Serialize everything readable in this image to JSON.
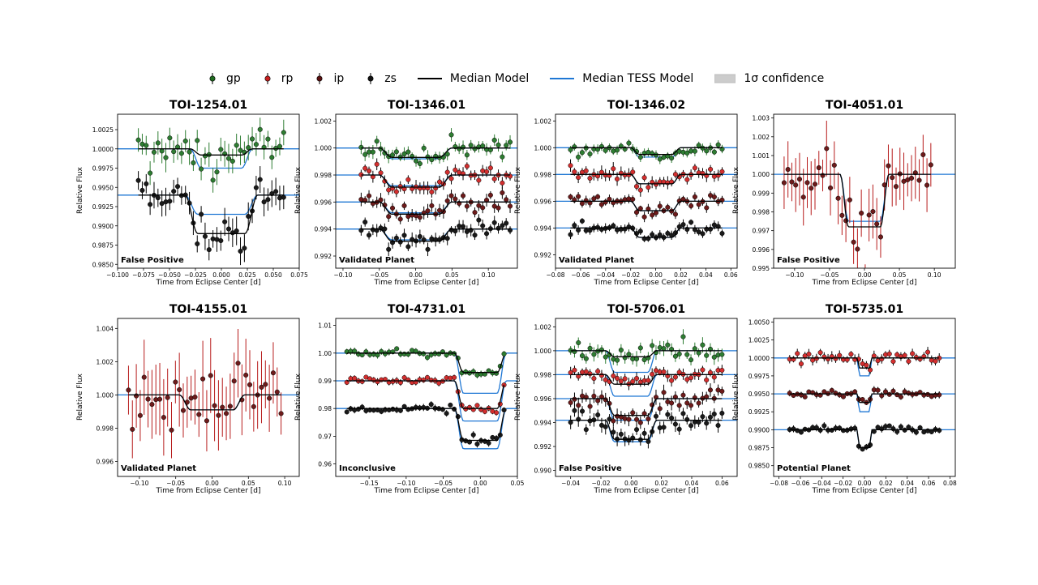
{
  "legend": {
    "items": [
      {
        "label": "gp",
        "type": "marker",
        "color": "#1f6b1f"
      },
      {
        "label": "rp",
        "type": "marker",
        "color": "#c81e1e"
      },
      {
        "label": "ip",
        "type": "marker",
        "color": "#5a1010"
      },
      {
        "label": "zs",
        "type": "marker",
        "color": "#111111"
      },
      {
        "label": "Median Model",
        "type": "line",
        "color": "#000000"
      },
      {
        "label": "Median TESS Model",
        "type": "line",
        "color": "#1f77d4"
      },
      {
        "label": "1σ confidence",
        "type": "patch",
        "color": "#cccccc"
      }
    ]
  },
  "colors": {
    "gp": "#2e7d32",
    "rp": "#d32f2f",
    "ip": "#6d1b1b",
    "zs": "#1a1a1a",
    "model": "#000000",
    "tess": "#1f77d4",
    "errbar_gp": "#2e7d32",
    "errbar_rp": "#b71c1c"
  },
  "chart_data": [
    {
      "type": "scatter",
      "title": "TOI-1254.01",
      "label": "False Positive",
      "xlabel": "Time from Eclipse Center [d]",
      "ylabel": "Relative Flux",
      "xlim": [
        -0.1,
        0.075
      ],
      "ylim": [
        0.9845,
        1.0045
      ],
      "xticks": [
        -0.1,
        -0.075,
        -0.05,
        -0.025,
        0.0,
        0.025,
        0.05,
        0.075
      ],
      "xticklabels": [
        "−0.100",
        "−0.075",
        "−0.050",
        "−0.025",
        "0.000",
        "0.025",
        "0.050",
        "0.075"
      ],
      "yticks": [
        0.985,
        0.9875,
        0.99,
        0.9925,
        0.995,
        0.9975,
        1.0,
        1.0025
      ],
      "yticklabels": [
        "0.9850",
        "0.9875",
        "0.9900",
        "0.9925",
        "0.9950",
        "0.9975",
        "1.0000",
        "1.0025"
      ],
      "data_xrange": [
        -0.08,
        0.06
      ],
      "series": [
        {
          "name": "gp",
          "baseline": 1.0,
          "depth": 0.0008,
          "half_width": 0.03,
          "tess_depth": 0.0025,
          "scatter": 0.0012,
          "err": 0.0015
        },
        {
          "name": "zs",
          "baseline": 0.994,
          "depth": 0.005,
          "half_width": 0.035,
          "tess_depth": 0.0025,
          "scatter": 0.0012,
          "err": 0.0015
        }
      ]
    },
    {
      "type": "scatter",
      "title": "TOI-1346.01",
      "label": "Validated Planet",
      "xlabel": "Time from Eclipse Center [d]",
      "ylabel": "Relative Flux",
      "xlim": [
        -0.11,
        0.14
      ],
      "ylim": [
        0.9911,
        1.0025
      ],
      "xticks": [
        -0.1,
        -0.05,
        0.0,
        0.05,
        0.1
      ],
      "xticklabels": [
        "−0.10",
        "−0.05",
        "0.00",
        "0.05",
        "0.10"
      ],
      "yticks": [
        0.992,
        0.994,
        0.996,
        0.998,
        1.0,
        1.002
      ],
      "yticklabels": [
        "0.992",
        "0.994",
        "0.996",
        "0.998",
        "1.000",
        "1.002"
      ],
      "data_xrange": [
        -0.075,
        0.13
      ],
      "series": [
        {
          "name": "gp",
          "baseline": 1.0,
          "depth": 0.0007,
          "half_width": 0.05,
          "tess_depth": 0.0008,
          "scatter": 0.0003,
          "err": 0.0004
        },
        {
          "name": "rp",
          "baseline": 0.998,
          "depth": 0.0009,
          "half_width": 0.05,
          "tess_depth": 0.0008,
          "scatter": 0.0003,
          "err": 0.0004
        },
        {
          "name": "ip",
          "baseline": 0.996,
          "depth": 0.0009,
          "half_width": 0.05,
          "tess_depth": 0.0008,
          "scatter": 0.0003,
          "err": 0.0004
        },
        {
          "name": "zs",
          "baseline": 0.994,
          "depth": 0.0009,
          "half_width": 0.05,
          "tess_depth": 0.0008,
          "scatter": 0.0003,
          "err": 0.0004
        }
      ]
    },
    {
      "type": "scatter",
      "title": "TOI-1346.02",
      "label": "Validated Planet",
      "xlabel": "Time from Eclipse Center [d]",
      "ylabel": "Relative Flux",
      "xlim": [
        -0.08,
        0.065
      ],
      "ylim": [
        0.991,
        1.0025
      ],
      "xticks": [
        -0.08,
        -0.06,
        -0.04,
        -0.02,
        0.0,
        0.02,
        0.04,
        0.06
      ],
      "xticklabels": [
        "−0.08",
        "−0.06",
        "−0.04",
        "−0.02",
        "0.00",
        "0.02",
        "0.04",
        "0.06"
      ],
      "yticks": [
        0.992,
        0.994,
        0.996,
        0.998,
        1.0,
        1.002
      ],
      "yticklabels": [
        "0.992",
        "0.994",
        "0.996",
        "0.998",
        "1.000",
        "1.002"
      ],
      "data_xrange": [
        -0.068,
        0.053
      ],
      "series": [
        {
          "name": "gp",
          "baseline": 1.0,
          "depth": 0.0005,
          "half_width": 0.02,
          "tess_depth": 0.0007,
          "scatter": 0.0002,
          "err": 0.0003
        },
        {
          "name": "rp",
          "baseline": 0.998,
          "depth": 0.0007,
          "half_width": 0.02,
          "tess_depth": 0.0007,
          "scatter": 0.0003,
          "err": 0.0004
        },
        {
          "name": "ip",
          "baseline": 0.996,
          "depth": 0.0007,
          "half_width": 0.02,
          "tess_depth": 0.0007,
          "scatter": 0.0002,
          "err": 0.0003
        },
        {
          "name": "zs",
          "baseline": 0.994,
          "depth": 0.0007,
          "half_width": 0.02,
          "tess_depth": 0.0007,
          "scatter": 0.0002,
          "err": 0.0003
        }
      ]
    },
    {
      "type": "scatter",
      "title": "TOI-4051.01",
      "label": "False Positive",
      "xlabel": "Time from Eclipse Center [d]",
      "ylabel": "Relative Flux",
      "xlim": [
        -0.13,
        0.13
      ],
      "ylim": [
        0.995,
        1.0032
      ],
      "xticks": [
        -0.1,
        -0.05,
        0.0,
        0.05,
        0.1
      ],
      "xticklabels": [
        "−0.10",
        "−0.05",
        "0.00",
        "0.05",
        "0.10"
      ],
      "yticks": [
        0.995,
        0.996,
        0.997,
        0.998,
        0.999,
        1.0,
        1.001,
        1.002,
        1.003
      ],
      "yticklabels": [
        "0.995",
        "0.996",
        "0.997",
        "0.998",
        "0.999",
        "1.000",
        "1.001",
        "1.002",
        "1.003"
      ],
      "data_xrange": [
        -0.115,
        0.095
      ],
      "series": [
        {
          "name": "ip",
          "baseline": 1.0,
          "depth": 0.0028,
          "half_width": 0.035,
          "tess_depth": 0.0025,
          "scatter": 0.0008,
          "err": 0.0012,
          "flat": true
        }
      ]
    },
    {
      "type": "scatter",
      "title": "TOI-4155.01",
      "label": "Validated Planet",
      "xlabel": "Time from Eclipse Center [d]",
      "ylabel": "Relative Flux",
      "xlim": [
        -0.13,
        0.12
      ],
      "ylim": [
        0.9951,
        1.0046
      ],
      "xticks": [
        -0.1,
        -0.05,
        0.0,
        0.05,
        0.1
      ],
      "xticklabels": [
        "−0.10",
        "−0.05",
        "0.00",
        "0.05",
        "0.10"
      ],
      "yticks": [
        0.996,
        0.998,
        1.0,
        1.002,
        1.004
      ],
      "yticklabels": [
        "0.996",
        "0.998",
        "1.000",
        "1.002",
        "1.004"
      ],
      "data_xrange": [
        -0.115,
        0.095
      ],
      "series": [
        {
          "name": "ip",
          "baseline": 1.0,
          "depth": 0.0009,
          "half_width": 0.045,
          "tess_depth": 0.0009,
          "scatter": 0.0009,
          "err": 0.0018
        }
      ]
    },
    {
      "type": "scatter",
      "title": "TOI-4731.01",
      "label": "Inconclusive",
      "xlabel": "Time from Eclipse Center [d]",
      "ylabel": "Relative Flux",
      "xlim": [
        -0.195,
        0.05
      ],
      "ylim": [
        0.9555,
        1.0125
      ],
      "xticks": [
        -0.15,
        -0.1,
        -0.05,
        0.0,
        0.05
      ],
      "xticklabels": [
        "−0.15",
        "−0.10",
        "−0.05",
        "0.00",
        "0.05"
      ],
      "yticks": [
        0.96,
        0.97,
        0.98,
        0.99,
        1.0,
        1.01
      ],
      "yticklabels": [
        "0.96",
        "0.97",
        "0.98",
        "0.99",
        "1.00",
        "1.01"
      ],
      "data_xrange": [
        -0.18,
        0.032
      ],
      "series": [
        {
          "name": "gp",
          "baseline": 1.0,
          "depth": 0.007,
          "half_width": 0.035,
          "tess_depth": 0.0145,
          "scatter": 0.0008,
          "err": 0.001
        },
        {
          "name": "rp",
          "baseline": 0.99,
          "depth": 0.01,
          "half_width": 0.035,
          "tess_depth": 0.0145,
          "scatter": 0.0008,
          "err": 0.001
        },
        {
          "name": "zs",
          "baseline": 0.98,
          "depth": 0.0115,
          "half_width": 0.035,
          "tess_depth": 0.0145,
          "scatter": 0.0008,
          "err": 0.001
        }
      ]
    },
    {
      "type": "scatter",
      "title": "TOI-5706.01",
      "label": "False Positive",
      "xlabel": "Time from Eclipse Center [d]",
      "ylabel": "Relative Flux",
      "xlim": [
        -0.05,
        0.07
      ],
      "ylim": [
        0.9895,
        1.0027
      ],
      "xticks": [
        -0.04,
        -0.02,
        0.0,
        0.02,
        0.04,
        0.06
      ],
      "xticklabels": [
        "−0.04",
        "−0.02",
        "0.00",
        "0.02",
        "0.04",
        "0.06"
      ],
      "yticks": [
        0.99,
        0.992,
        0.994,
        0.996,
        0.998,
        1.0,
        1.002
      ],
      "yticklabels": [
        "0.990",
        "0.992",
        "0.994",
        "0.996",
        "0.998",
        "1.000",
        "1.002"
      ],
      "data_xrange": [
        -0.04,
        0.06
      ],
      "series": [
        {
          "name": "gp",
          "baseline": 1.0,
          "depth": 0.0005,
          "half_width": 0.017,
          "tess_depth": 0.0018,
          "scatter": 0.0004,
          "err": 0.0005
        },
        {
          "name": "rp",
          "baseline": 0.998,
          "depth": 0.0008,
          "half_width": 0.017,
          "tess_depth": 0.0018,
          "scatter": 0.0003,
          "err": 0.0004
        },
        {
          "name": "ip",
          "baseline": 0.996,
          "depth": 0.0014,
          "half_width": 0.017,
          "tess_depth": 0.0018,
          "scatter": 0.0004,
          "err": 0.0005
        },
        {
          "name": "zs",
          "baseline": 0.9942,
          "depth": 0.0016,
          "half_width": 0.017,
          "tess_depth": 0.0018,
          "scatter": 0.0004,
          "err": 0.0005
        }
      ]
    },
    {
      "type": "scatter",
      "title": "TOI-5735.01",
      "label": "Potential Planet",
      "xlabel": "Time from Eclipse Center [d]",
      "ylabel": "Relative Flux",
      "xlim": [
        -0.085,
        0.085
      ],
      "ylim": [
        0.9835,
        1.0055
      ],
      "xticks": [
        -0.08,
        -0.06,
        -0.04,
        -0.02,
        0.0,
        0.02,
        0.04,
        0.06,
        0.08
      ],
      "xticklabels": [
        "−0.08",
        "−0.06",
        "−0.04",
        "−0.02",
        "0.00",
        "0.02",
        "0.04",
        "0.06",
        "0.08"
      ],
      "yticks": [
        0.985,
        0.9875,
        0.99,
        0.9925,
        0.995,
        0.9975,
        1.0,
        1.0025,
        1.005
      ],
      "yticklabels": [
        "0.9850",
        "0.9875",
        "0.9900",
        "0.9925",
        "0.9950",
        "0.9975",
        "1.0000",
        "1.0025",
        "1.0050"
      ],
      "data_xrange": [
        -0.07,
        0.07
      ],
      "series": [
        {
          "name": "rp",
          "baseline": 1.0,
          "depth": 0.0014,
          "half_width": 0.007,
          "tess_depth": 0.0025,
          "scatter": 0.0004,
          "err": 0.0006
        },
        {
          "name": "ip",
          "baseline": 0.995,
          "depth": 0.0012,
          "half_width": 0.007,
          "tess_depth": 0.0025,
          "scatter": 0.0003,
          "err": 0.0004
        },
        {
          "name": "zs",
          "baseline": 0.99,
          "depth": 0.0025,
          "half_width": 0.007,
          "tess_depth": 0.0025,
          "scatter": 0.0003,
          "err": 0.0004
        }
      ]
    }
  ]
}
